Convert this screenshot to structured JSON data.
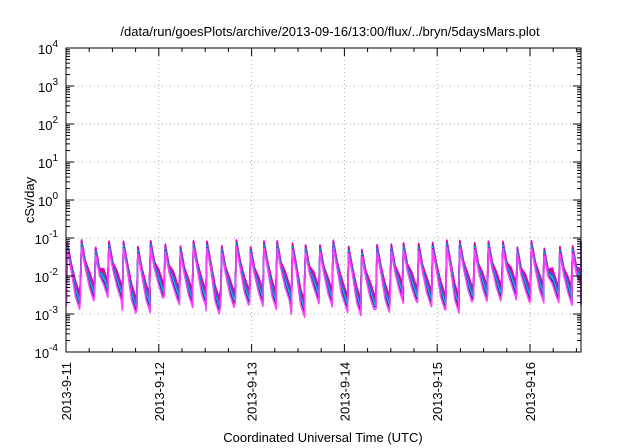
{
  "chart_data": {
    "type": "line",
    "title": "/data/run/goesPlots/archive/2013-09-16/13:00/flux/../bryn/5daysMars.plot",
    "xlabel": "Coordinated Universal Time (UTC)",
    "ylabel": "cSv/day",
    "x_ticks": [
      "2013-9-11",
      "2013-9-12",
      "2013-9-13",
      "2013-9-14",
      "2013-9-15",
      "2013-9-16"
    ],
    "x_range": [
      "2013-09-11T00:00",
      "2013-09-16T13:00"
    ],
    "y_scale": "log",
    "y_ticks": [
      {
        "base": "10",
        "exp": "4"
      },
      {
        "base": "10",
        "exp": "3"
      },
      {
        "base": "10",
        "exp": "2"
      },
      {
        "base": "10",
        "exp": "1"
      },
      {
        "base": "10",
        "exp": "0"
      },
      {
        "base": "10",
        "exp": "-1"
      },
      {
        "base": "10",
        "exp": "-2"
      },
      {
        "base": "10",
        "exp": "-3"
      },
      {
        "base": "10",
        "exp": "-4"
      }
    ],
    "ylim": [
      0.0001,
      10000
    ],
    "grid": true,
    "cycles_per_day": 6.6,
    "sawtooth_peak_range": [
      0.05,
      0.09
    ],
    "sawtooth_trough_range": [
      0.0006,
      0.003
    ],
    "series_colors": [
      "#ff00ff",
      "#dd00dd",
      "#c000a0",
      "#ee2040",
      "#8a2be2",
      "#3050ff",
      "#00b0c0",
      "#00d0d0",
      "#2020a0",
      "#ff40ff"
    ]
  }
}
